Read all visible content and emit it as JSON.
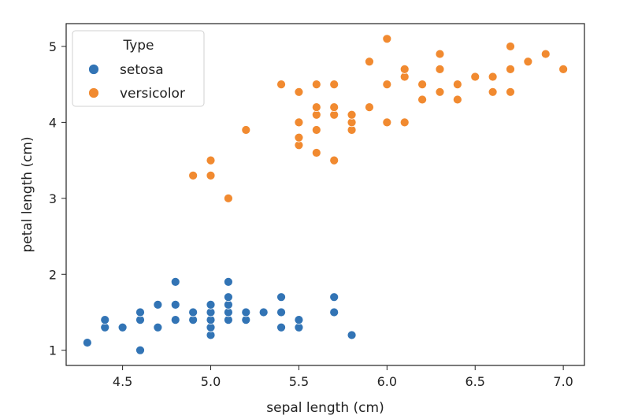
{
  "chart_data": {
    "type": "scatter",
    "title": "",
    "xlabel": "sepal length (cm)",
    "ylabel": "petal length (cm)",
    "xlim": [
      4.18,
      7.12
    ],
    "ylim": [
      0.8,
      5.3
    ],
    "xticks": [
      "4.5",
      "5.0",
      "5.5",
      "6.0",
      "6.5",
      "7.0"
    ],
    "yticks": [
      "1",
      "2",
      "3",
      "4",
      "5"
    ],
    "grid": false,
    "legend": {
      "title": "Type",
      "placement": "top-left"
    },
    "series": [
      {
        "name": "setosa",
        "color": "#3274b5",
        "points": [
          [
            4.3,
            1.1
          ],
          [
            4.4,
            1.3
          ],
          [
            4.4,
            1.4
          ],
          [
            4.5,
            1.3
          ],
          [
            4.6,
            1.0
          ],
          [
            4.6,
            1.4
          ],
          [
            4.6,
            1.5
          ],
          [
            4.7,
            1.3
          ],
          [
            4.7,
            1.6
          ],
          [
            4.8,
            1.4
          ],
          [
            4.8,
            1.6
          ],
          [
            4.8,
            1.9
          ],
          [
            4.9,
            1.4
          ],
          [
            4.9,
            1.5
          ],
          [
            5.0,
            1.2
          ],
          [
            5.0,
            1.3
          ],
          [
            5.0,
            1.4
          ],
          [
            5.0,
            1.5
          ],
          [
            5.0,
            1.6
          ],
          [
            5.1,
            1.4
          ],
          [
            5.1,
            1.5
          ],
          [
            5.1,
            1.6
          ],
          [
            5.1,
            1.7
          ],
          [
            5.1,
            1.9
          ],
          [
            5.2,
            1.4
          ],
          [
            5.2,
            1.5
          ],
          [
            5.3,
            1.5
          ],
          [
            5.4,
            1.3
          ],
          [
            5.4,
            1.5
          ],
          [
            5.4,
            1.7
          ],
          [
            5.5,
            1.3
          ],
          [
            5.5,
            1.4
          ],
          [
            5.7,
            1.5
          ],
          [
            5.7,
            1.7
          ],
          [
            5.8,
            1.2
          ]
        ]
      },
      {
        "name": "versicolor",
        "color": "#f18a30",
        "points": [
          [
            4.9,
            3.3
          ],
          [
            5.0,
            3.3
          ],
          [
            5.0,
            3.5
          ],
          [
            5.1,
            3.0
          ],
          [
            5.2,
            3.9
          ],
          [
            5.4,
            4.5
          ],
          [
            5.5,
            3.7
          ],
          [
            5.5,
            3.8
          ],
          [
            5.5,
            4.0
          ],
          [
            5.5,
            4.4
          ],
          [
            5.6,
            3.6
          ],
          [
            5.6,
            3.9
          ],
          [
            5.6,
            4.1
          ],
          [
            5.6,
            4.2
          ],
          [
            5.6,
            4.5
          ],
          [
            5.7,
            3.5
          ],
          [
            5.7,
            4.1
          ],
          [
            5.7,
            4.2
          ],
          [
            5.7,
            4.5
          ],
          [
            5.8,
            3.9
          ],
          [
            5.8,
            4.0
          ],
          [
            5.8,
            4.1
          ],
          [
            5.9,
            4.2
          ],
          [
            5.9,
            4.8
          ],
          [
            6.0,
            4.0
          ],
          [
            6.0,
            4.5
          ],
          [
            6.0,
            5.1
          ],
          [
            6.1,
            4.0
          ],
          [
            6.1,
            4.6
          ],
          [
            6.1,
            4.7
          ],
          [
            6.2,
            4.3
          ],
          [
            6.2,
            4.5
          ],
          [
            6.3,
            4.4
          ],
          [
            6.3,
            4.7
          ],
          [
            6.3,
            4.9
          ],
          [
            6.4,
            4.3
          ],
          [
            6.4,
            4.5
          ],
          [
            6.5,
            4.6
          ],
          [
            6.6,
            4.4
          ],
          [
            6.6,
            4.6
          ],
          [
            6.7,
            4.4
          ],
          [
            6.7,
            4.7
          ],
          [
            6.7,
            5.0
          ],
          [
            6.8,
            4.8
          ],
          [
            6.9,
            4.9
          ],
          [
            7.0,
            4.7
          ]
        ]
      }
    ]
  }
}
